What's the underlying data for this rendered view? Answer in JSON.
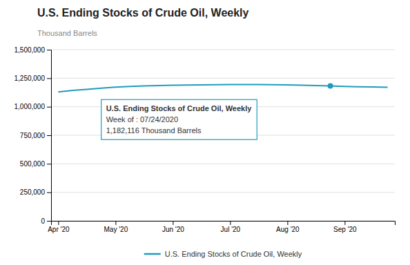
{
  "chart_data": {
    "type": "line",
    "title": "U.S. Ending Stocks of Crude Oil, Weekly",
    "y_label": "Thousand Barrels",
    "x": [
      0,
      1,
      2,
      3,
      4,
      5,
      6,
      7,
      8,
      9,
      10,
      11,
      12,
      13,
      14,
      15,
      16,
      17,
      18,
      19,
      20,
      21,
      22,
      23
    ],
    "series": [
      {
        "name": "U.S. Ending Stocks of Crude Oil, Weekly",
        "color": "#1f9bbf",
        "values": [
          1130000,
          1143000,
          1152000,
          1163000,
          1172000,
          1178000,
          1182000,
          1185000,
          1188000,
          1190000,
          1192000,
          1193000,
          1194000,
          1194000,
          1194000,
          1193000,
          1192000,
          1188000,
          1185000,
          1182116,
          1178000,
          1175000,
          1173000,
          1170000
        ]
      }
    ],
    "xlim": [
      -0.5,
      23.5
    ],
    "xticks": [
      {
        "value": 0,
        "label": "Apr '20"
      },
      {
        "value": 4,
        "label": "May '20"
      },
      {
        "value": 8,
        "label": "Jun '20"
      },
      {
        "value": 12,
        "label": "Jul '20"
      },
      {
        "value": 16,
        "label": "Aug '20"
      },
      {
        "value": 20,
        "label": "Sep '20"
      }
    ],
    "ylim": [
      0,
      1500000
    ],
    "yticks": [
      0,
      {
        "value": 250000,
        "label": "250,000"
      },
      {
        "value": 500000,
        "label": "500,000"
      },
      {
        "value": 750000,
        "label": "750,000"
      },
      {
        "value": 1000000,
        "label": "1,000,000"
      },
      {
        "value": 1250000,
        "label": "1,250,000"
      },
      {
        "value": 1500000,
        "label": "1,500,000"
      }
    ],
    "annotations": [
      {
        "x": 19,
        "y": 1182116,
        "lines": [
          "U.S. Ending Stocks of Crude Oil, Weekly",
          "Week of : 07/24/2020",
          "1,182,116 Thousand Barrels"
        ]
      }
    ],
    "grid": true,
    "legend": "bottom"
  }
}
